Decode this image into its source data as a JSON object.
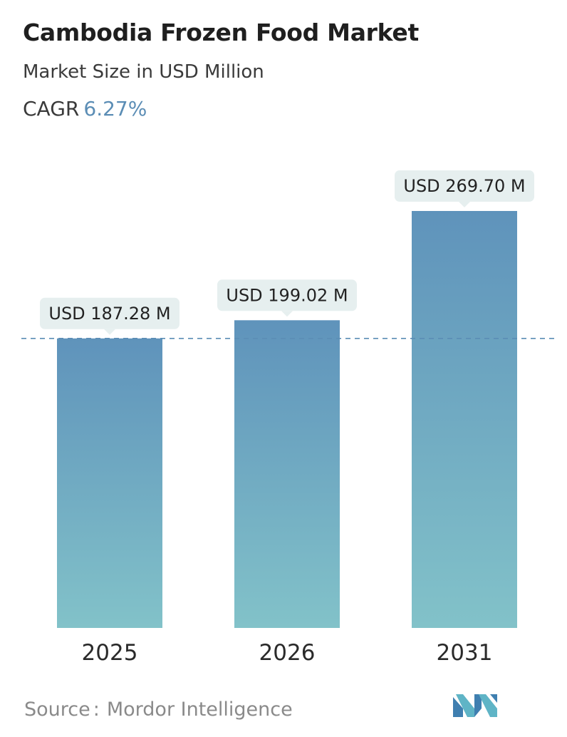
{
  "header": {
    "title": "Cambodia Frozen Food Market",
    "subtitle": "Market Size in USD Million",
    "cagr_label": "CAGR",
    "cagr_value": "6.27%"
  },
  "footer": {
    "source_label": "Source",
    "source_sep": ":",
    "source_name": "Mordor Intelligence",
    "logo_icon": "mordor-intelligence-logo-icon"
  },
  "colors": {
    "bar_top": "#5f93bb",
    "bar_bottom": "#82c2c9",
    "callout_bg": "#e6efef",
    "dashed_line": "#5b8db5",
    "cagr_accent": "#5b8db5"
  },
  "chart_data": {
    "type": "bar",
    "categories": [
      "2025",
      "2026",
      "2031"
    ],
    "values": [
      187.28,
      199.02,
      269.7
    ],
    "data_labels": [
      "USD 187.28 M",
      "USD 199.02 M",
      "USD 269.70 M"
    ],
    "title": "Cambodia Frozen Food Market",
    "ylabel": "Market Size in USD Million",
    "reference_line": 187.28,
    "ylim": [
      0,
      269.7
    ],
    "grid": false,
    "legend": "none"
  }
}
